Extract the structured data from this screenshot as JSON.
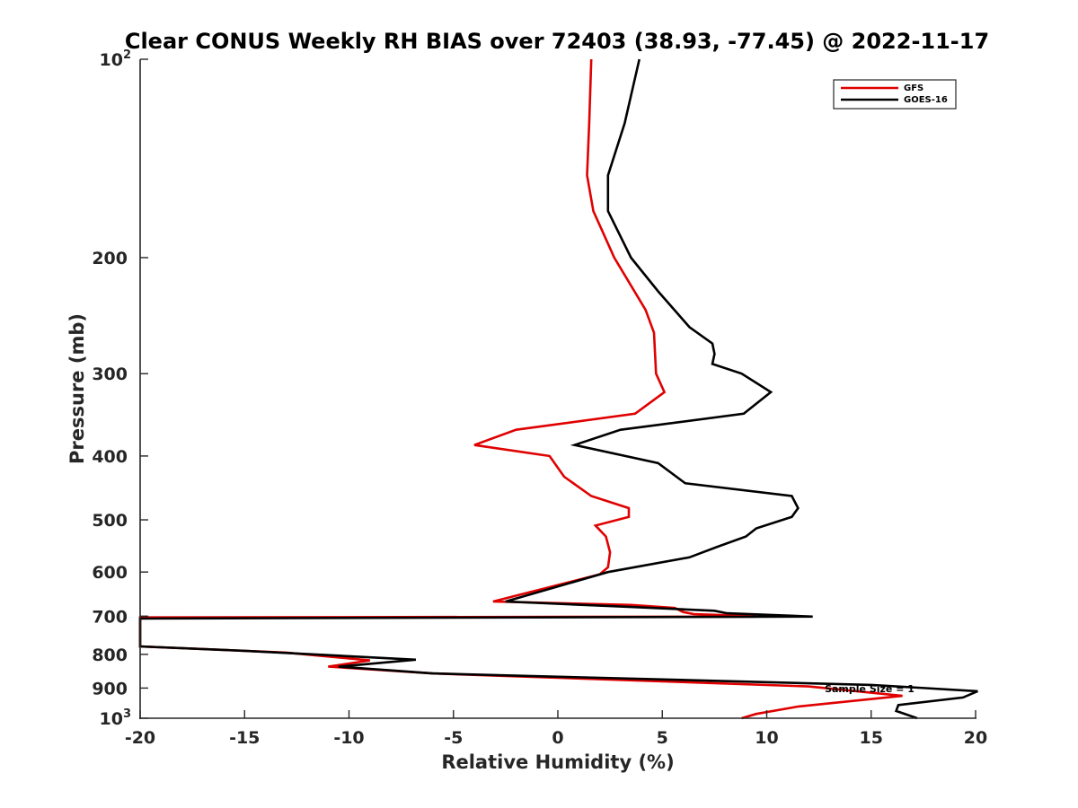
{
  "chart_data": {
    "type": "line",
    "title": "Clear CONUS Weekly RH BIAS over 72403 (38.93, -77.45) @ 2022-11-17",
    "xlabel": "Relative Humidity (%)",
    "ylabel": "Pressure (mb)",
    "xlim": [
      -20,
      20
    ],
    "ylim": [
      100,
      1000
    ],
    "y_scale": "log",
    "y_reversed": true,
    "grid": false,
    "legend_position": "top-right",
    "annotation": "Sample Size = 1",
    "x_ticks": [
      "-20",
      "-15",
      "-10",
      "-5",
      "0",
      "5",
      "10",
      "15",
      "20"
    ],
    "y_ticks": [
      {
        "value": 100,
        "label": "10",
        "sup": "2"
      },
      {
        "value": 200,
        "label": "200",
        "sup": ""
      },
      {
        "value": 300,
        "label": "300",
        "sup": ""
      },
      {
        "value": 400,
        "label": "400",
        "sup": ""
      },
      {
        "value": 500,
        "label": "500",
        "sup": ""
      },
      {
        "value": 600,
        "label": "600",
        "sup": ""
      },
      {
        "value": 700,
        "label": "700",
        "sup": ""
      },
      {
        "value": 800,
        "label": "800",
        "sup": ""
      },
      {
        "value": 900,
        "label": "900",
        "sup": ""
      },
      {
        "value": 1000,
        "label": "10",
        "sup": "3"
      }
    ],
    "series": [
      {
        "name": "GFS",
        "color": "#e00000",
        "points": [
          [
            1.6,
            100
          ],
          [
            1.5,
            125
          ],
          [
            1.4,
            150
          ],
          [
            1.7,
            170
          ],
          [
            2.7,
            200
          ],
          [
            4.2,
            240
          ],
          [
            4.6,
            260
          ],
          [
            4.7,
            300
          ],
          [
            5.1,
            320
          ],
          [
            3.7,
            345
          ],
          [
            -2.0,
            365
          ],
          [
            -4.0,
            385
          ],
          [
            -0.4,
            400
          ],
          [
            0.3,
            430
          ],
          [
            1.6,
            460
          ],
          [
            3.4,
            480
          ],
          [
            3.4,
            495
          ],
          [
            1.8,
            510
          ],
          [
            2.3,
            530
          ],
          [
            2.5,
            560
          ],
          [
            2.4,
            590
          ],
          [
            2.0,
            605
          ],
          [
            -3.1,
            665
          ],
          [
            3.5,
            673
          ],
          [
            5.6,
            680
          ],
          [
            6.0,
            690
          ],
          [
            6.5,
            695
          ],
          [
            8.3,
            698
          ],
          [
            9.5,
            701
          ],
          [
            -20,
            703
          ],
          [
            -20,
            778
          ],
          [
            -13.0,
            795
          ],
          [
            -9.0,
            817
          ],
          [
            -11.0,
            835
          ],
          [
            -6.0,
            855
          ],
          [
            12.0,
            895
          ],
          [
            16.5,
            925
          ],
          [
            11.5,
            960
          ],
          [
            9.5,
            985
          ],
          [
            8.8,
            1000
          ]
        ]
      },
      {
        "name": "GOES-16",
        "color": "#000000",
        "points": [
          [
            3.9,
            100
          ],
          [
            3.2,
            125
          ],
          [
            2.4,
            150
          ],
          [
            2.4,
            170
          ],
          [
            3.5,
            200
          ],
          [
            4.8,
            225
          ],
          [
            6.3,
            255
          ],
          [
            7.4,
            270
          ],
          [
            7.5,
            280
          ],
          [
            7.4,
            290
          ],
          [
            8.8,
            300
          ],
          [
            10.2,
            320
          ],
          [
            8.9,
            345
          ],
          [
            3.0,
            365
          ],
          [
            0.8,
            385
          ],
          [
            4.8,
            410
          ],
          [
            6.1,
            440
          ],
          [
            11.2,
            460
          ],
          [
            11.5,
            480
          ],
          [
            11.2,
            495
          ],
          [
            9.5,
            515
          ],
          [
            9.0,
            530
          ],
          [
            7.6,
            550
          ],
          [
            6.3,
            570
          ],
          [
            2.4,
            600
          ],
          [
            -2.5,
            665
          ],
          [
            3.5,
            678
          ],
          [
            7.5,
            687
          ],
          [
            8.1,
            693
          ],
          [
            12.2,
            701
          ],
          [
            -20,
            706
          ],
          [
            -20,
            778
          ],
          [
            -15.0,
            790
          ],
          [
            -6.8,
            815
          ],
          [
            -10.5,
            835
          ],
          [
            -6.0,
            855
          ],
          [
            15.0,
            890
          ],
          [
            20.1,
            910
          ],
          [
            19.4,
            930
          ],
          [
            16.3,
            955
          ],
          [
            16.2,
            975
          ],
          [
            17.2,
            1000
          ]
        ]
      }
    ]
  }
}
